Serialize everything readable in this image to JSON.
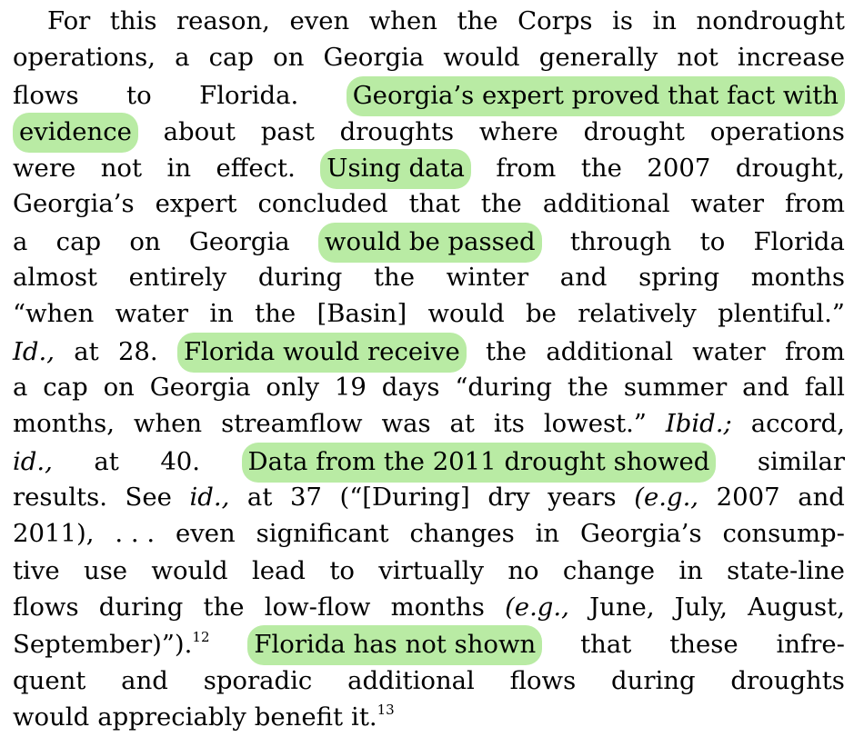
{
  "document": {
    "lines": [
      [
        "For",
        "this",
        "reason,",
        "even",
        "when",
        "the",
        "Corps",
        "is",
        "in",
        "nondrought"
      ],
      [
        "operations,",
        "a",
        "cap",
        "on",
        "Georgia",
        "would",
        "generally",
        "not",
        "increase"
      ],
      [
        "flows",
        "to",
        "Florida.",
        "Georgia’s",
        "expert",
        "proved",
        "that",
        "fact",
        "with"
      ],
      [
        "evidence",
        "about",
        "past",
        "droughts",
        "where",
        "drought",
        "operations"
      ],
      [
        "were",
        "not",
        "in",
        "effect.",
        "Using",
        "data",
        "from",
        "the",
        "2007",
        "drought,"
      ],
      [
        "Georgia’s",
        "expert",
        "concluded",
        "that",
        "the",
        "additional",
        "water",
        "from"
      ],
      [
        "a",
        "cap",
        "on",
        "Georgia",
        "would",
        "be",
        "passed",
        "through",
        "to",
        "Florida"
      ],
      [
        "almost",
        "entirely",
        "during",
        "the",
        "winter",
        "and",
        "spring",
        "months"
      ],
      [
        "“when",
        "water",
        "in",
        "the",
        "[Basin]",
        "would",
        "be",
        "relatively",
        "plentiful.”"
      ],
      [
        "Id.,",
        "at",
        "28.",
        "Florida",
        "would",
        "receive",
        "the",
        "additional",
        "water",
        "from"
      ],
      [
        "a",
        "cap",
        "on",
        "Georgia",
        "only",
        "19",
        "days",
        "“during",
        "the",
        "summer",
        "and",
        "fall"
      ],
      [
        "months,",
        "when",
        "streamflow",
        "was",
        "at",
        "its",
        "lowest.”",
        "Ibid.;",
        "accord,"
      ],
      [
        "id.,",
        "at",
        "40.",
        "Data",
        "from",
        "the",
        "2011",
        "drought",
        "showed",
        "similar"
      ],
      [
        "results.",
        "See",
        "id.,",
        "at",
        "37",
        "(“[During]",
        "dry",
        "years",
        "(e.g.,",
        "2007",
        "and"
      ],
      [
        "2011),",
        ". . .",
        "even",
        "significant",
        "changes",
        "in",
        "Georgia’s",
        "consump-"
      ],
      [
        "tive",
        "use",
        "would",
        "lead",
        "to",
        "virtually",
        "no",
        "change",
        "in",
        "state-line"
      ],
      [
        "flows",
        "during",
        "the",
        "low-flow",
        "months",
        "(e.g.,",
        "June,",
        "July,",
        "August,"
      ],
      [
        "September)”).",
        "Florida",
        "has",
        "not",
        "shown",
        "that",
        "these",
        "infre-"
      ],
      [
        "quent",
        "and",
        "sporadic",
        "additional",
        "flows",
        "during",
        "droughts"
      ],
      [
        "would",
        "appreciably",
        "benefit",
        "it."
      ]
    ],
    "footnotes": {
      "fn12": "12",
      "fn13": "13"
    }
  }
}
